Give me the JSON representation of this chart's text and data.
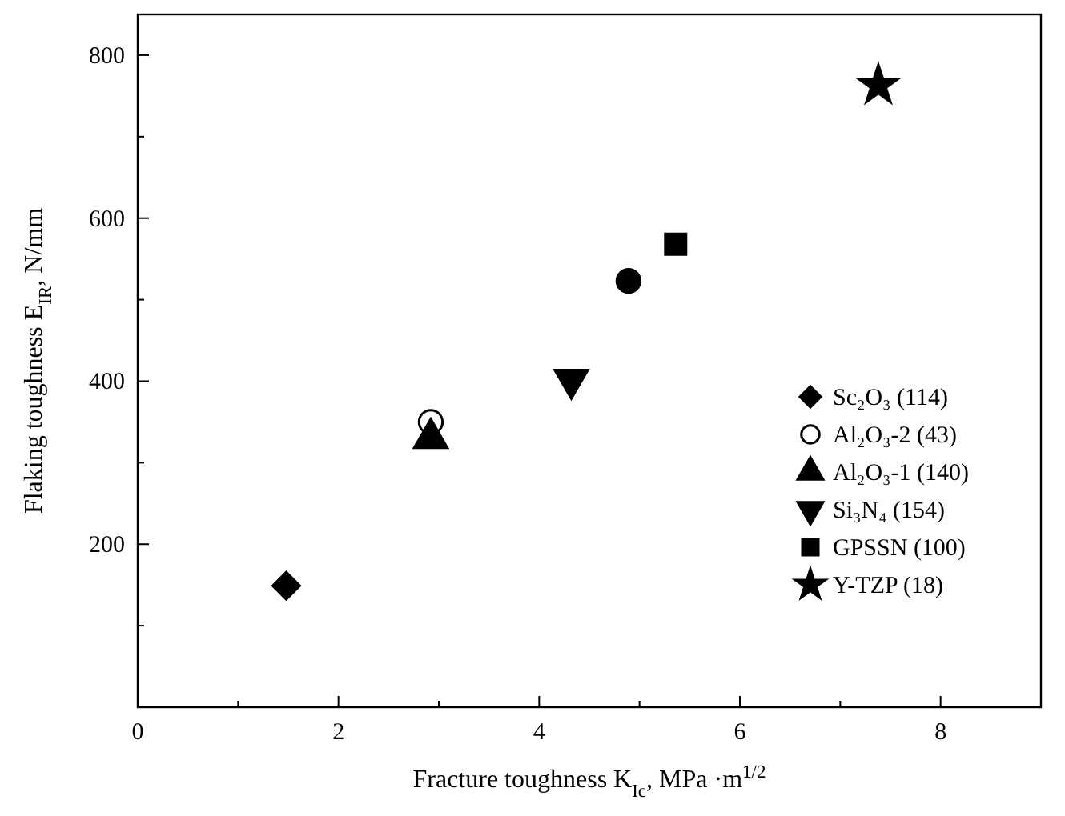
{
  "chart_data": {
    "type": "scatter",
    "xlabel": "Fracture toughness K$_{Ic}$, MPa ·m$^{1/2}$",
    "ylabel": "Flaking toughness E$_{IR}$, N/mm",
    "xlim": [
      0,
      9
    ],
    "xticks": [
      0,
      {
        "value": 1,
        "label": null
      },
      2,
      {
        "value": 3,
        "label": null
      },
      4,
      {
        "value": 5,
        "label": null
      },
      6,
      {
        "value": 7,
        "label": null
      },
      8
    ],
    "ylim": [
      0,
      850
    ],
    "yticks": [
      {
        "value": 100,
        "label": null
      },
      200,
      {
        "value": 300,
        "label": null
      },
      400,
      {
        "value": 500,
        "label": null
      },
      600,
      {
        "value": 700,
        "label": null
      },
      800
    ],
    "legend": "right",
    "grid": false,
    "series": [
      {
        "name": "Sc₂O₃ (114)",
        "color": "#000000",
        "marker": "diamond",
        "x": [
          1.48
        ],
        "values": [
          149
        ]
      },
      {
        "name": "Al₂O₃-2 (43)",
        "color": "#ffffff",
        "marker": "circle",
        "x": [
          2.92
        ],
        "values": [
          350
        ]
      },
      {
        "name": "Al₂O₃-1 (140)",
        "color": "#000000",
        "marker": "triangle",
        "x": [
          2.92
        ],
        "values": [
          330
        ]
      },
      {
        "name": "Si₃N₄ (154)",
        "color": "#000000",
        "marker": "triangle-down",
        "x": [
          4.32
        ],
        "values": [
          402
        ]
      },
      {
        "color": "#000000",
        "marker": "circle",
        "x": [
          4.89
        ],
        "values": [
          523
        ]
      },
      {
        "name": "GPSSN (100)",
        "color": "#000000",
        "marker": "square",
        "x": [
          5.36
        ],
        "values": [
          568
        ]
      },
      {
        "name": "Y-TZP (18)",
        "color": "#000000",
        "marker": "star",
        "x": [
          7.38
        ],
        "values": [
          763
        ]
      }
    ]
  }
}
